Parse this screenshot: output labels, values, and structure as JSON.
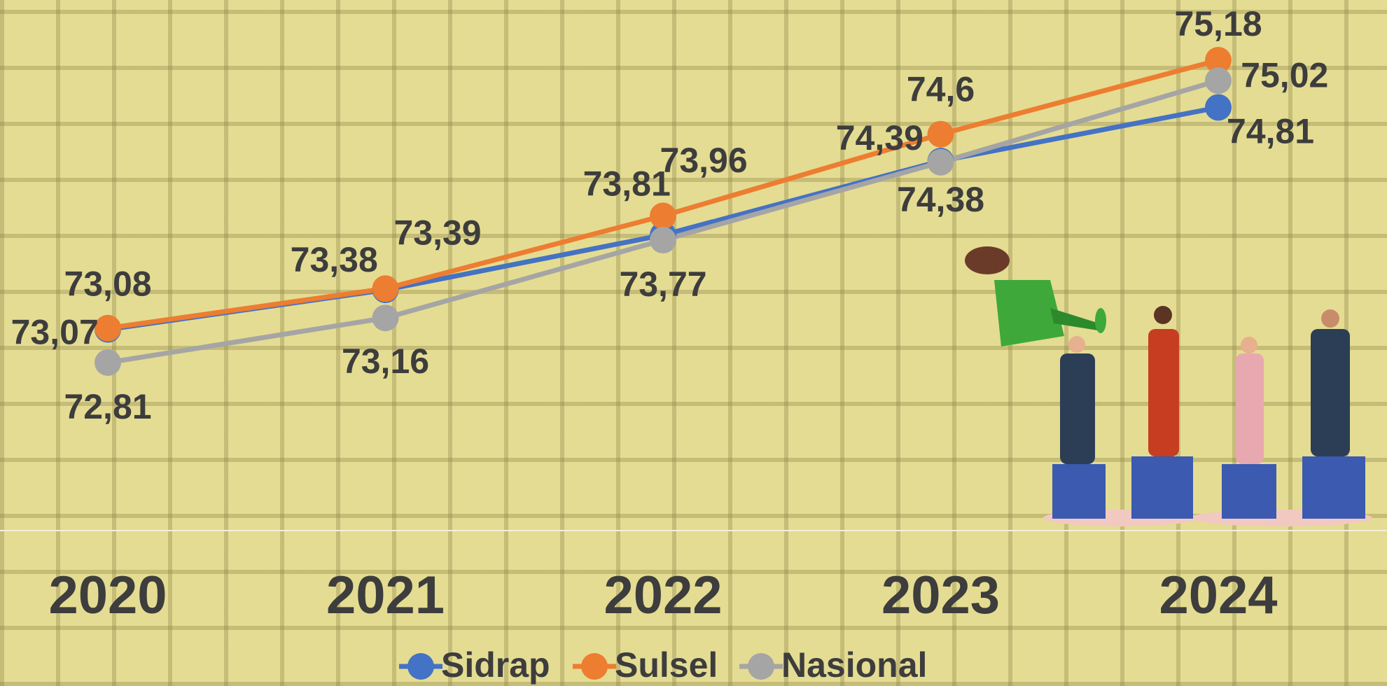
{
  "chart_data": {
    "type": "line",
    "categories": [
      "2020",
      "2021",
      "2022",
      "2023",
      "2024"
    ],
    "series": [
      {
        "name": "Sidrap",
        "color": "#4472c4",
        "values": [
          73.07,
          73.38,
          73.81,
          74.39,
          74.81
        ],
        "value_labels": [
          "73,07",
          "73,38",
          "73,81",
          "74,39",
          "74,81"
        ]
      },
      {
        "name": "Sulsel",
        "color": "#ed7d31",
        "values": [
          73.08,
          73.39,
          73.96,
          74.6,
          75.18
        ],
        "value_labels": [
          "73,08",
          "73,39",
          "73,96",
          "74,6",
          "75,18"
        ]
      },
      {
        "name": "Nasional",
        "color": "#a5a5a5",
        "values": [
          72.81,
          73.16,
          73.77,
          74.38,
          75.02
        ],
        "value_labels": [
          "72,81",
          "73,16",
          "73,77",
          "74,38",
          "75,02"
        ]
      }
    ]
  }
}
